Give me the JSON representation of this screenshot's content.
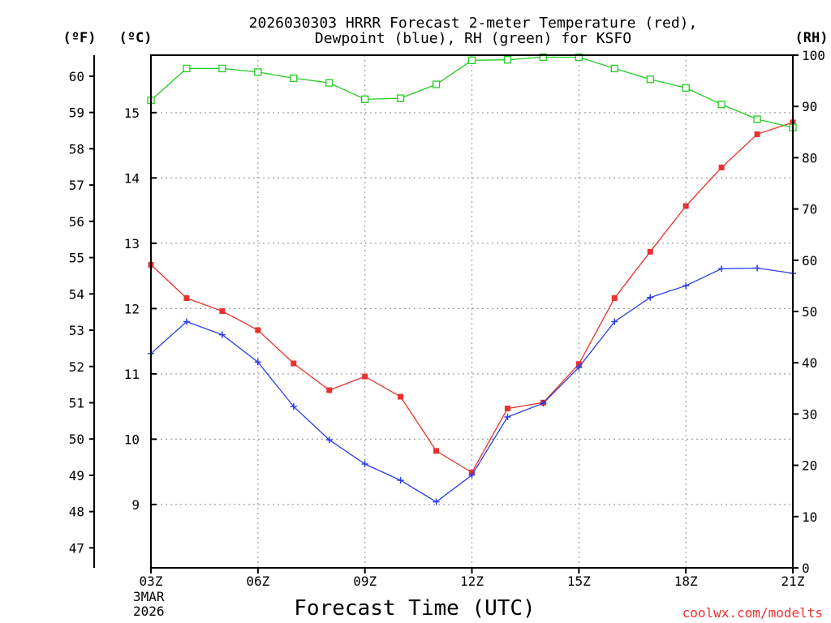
{
  "chart_data": {
    "type": "line",
    "title": {
      "line1": "2026030303 HRRR Forecast 2-meter Temperature (red),",
      "line2": "Dewpoint (blue), RH (green) for KSFO"
    },
    "xlabel": "Forecast Time (UTC)",
    "x": [
      "03Z",
      "04Z",
      "05Z",
      "06Z",
      "07Z",
      "08Z",
      "09Z",
      "10Z",
      "11Z",
      "12Z",
      "13Z",
      "14Z",
      "15Z",
      "16Z",
      "17Z",
      "18Z",
      "19Z",
      "20Z",
      "21Z"
    ],
    "x_ticks": [
      {
        "index": 0,
        "label": "03Z"
      },
      {
        "index": 3,
        "label": "06Z"
      },
      {
        "index": 6,
        "label": "09Z"
      },
      {
        "index": 9,
        "label": "12Z"
      },
      {
        "index": 12,
        "label": "15Z"
      },
      {
        "index": 15,
        "label": "18Z"
      },
      {
        "index": 18,
        "label": "21Z"
      }
    ],
    "date_label": {
      "day": "3MAR",
      "year": "2026"
    },
    "units": {
      "fahrenheit": "(ºF)",
      "celsius": "(ºC)",
      "rh": "(RH)"
    },
    "y_celsius": {
      "range": [
        8.03,
        15.88
      ],
      "ticks": [
        9,
        10,
        11,
        12,
        13,
        14,
        15
      ]
    },
    "y_fahrenheit": {
      "range": [
        46.45,
        60.58
      ],
      "ticks": [
        47,
        48,
        49,
        50,
        51,
        52,
        53,
        54,
        55,
        56,
        57,
        58,
        59,
        60
      ]
    },
    "y_rh": {
      "range": [
        0,
        100
      ],
      "ticks": [
        0,
        10,
        20,
        30,
        40,
        50,
        60,
        70,
        80,
        90,
        100
      ]
    },
    "series": [
      {
        "name": "Temperature",
        "axis": "celsius",
        "color": "#e8322f",
        "marker": "filled-square",
        "values": [
          12.67,
          12.16,
          11.96,
          11.67,
          11.16,
          10.75,
          10.96,
          10.65,
          9.82,
          9.49,
          10.47,
          10.56,
          11.15,
          12.16,
          12.87,
          13.57,
          14.16,
          14.67,
          14.85
        ]
      },
      {
        "name": "Dewpoint",
        "axis": "celsius",
        "color": "#2c3de8",
        "marker": "plus",
        "values": [
          11.31,
          11.8,
          11.6,
          11.18,
          10.5,
          9.99,
          9.62,
          9.37,
          9.04,
          9.45,
          10.34,
          10.55,
          11.1,
          11.8,
          12.17,
          12.35,
          12.61,
          12.62,
          12.54
        ]
      },
      {
        "name": "RH",
        "axis": "rh",
        "color": "#22cc22",
        "marker": "open-square",
        "values": [
          91.2,
          97.4,
          97.4,
          96.7,
          95.5,
          94.6,
          91.4,
          91.6,
          94.3,
          99.0,
          99.1,
          99.6,
          99.6,
          97.4,
          95.3,
          93.6,
          90.4,
          87.5,
          85.9
        ]
      }
    ]
  },
  "credit": "coolwx.com/modelts"
}
